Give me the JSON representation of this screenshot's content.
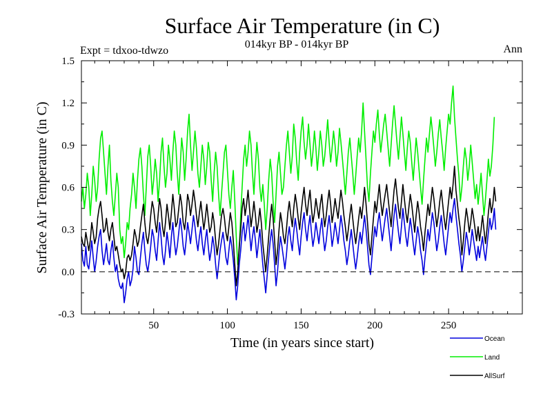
{
  "chart_data": {
    "type": "line",
    "title": "Surface Air Temperature (in C)",
    "subtitle": "014kyr BP - 014kyr BP",
    "experiment_label": "Expt = tdxoo-tdwzo",
    "season_label": "Ann",
    "xlabel": "Time (in years since start)",
    "ylabel": "Surface Air Temperature (in C)",
    "xlim": [
      1,
      300
    ],
    "ylim": [
      -0.3,
      1.5
    ],
    "x_ticks": [
      50,
      100,
      150,
      200,
      250
    ],
    "x_tick_labels": [
      "50",
      "100",
      "150",
      "200",
      "250"
    ],
    "y_ticks": [
      -0.3,
      0.0,
      0.3,
      0.6,
      0.9,
      1.2,
      1.5
    ],
    "y_tick_labels": [
      "-0.3",
      "0.0",
      "0.3",
      "0.6",
      "0.9",
      "1.2",
      "1.5"
    ],
    "reference_line": 0.0,
    "x_start": 1,
    "x_step": 1,
    "series": [
      {
        "name": "Ocean",
        "color": "#0000dd",
        "values": [
          0.2,
          0.08,
          0.04,
          0.18,
          0.05,
          0.02,
          0.12,
          0.22,
          0.1,
          0.0,
          0.08,
          0.18,
          0.25,
          0.3,
          0.15,
          0.05,
          0.12,
          0.2,
          0.08,
          0.05,
          0.15,
          0.22,
          0.1,
          0.0,
          0.05,
          -0.05,
          -0.1,
          -0.12,
          -0.08,
          -0.22,
          -0.15,
          -0.05,
          0.0,
          -0.1,
          -0.06,
          0.02,
          0.18,
          0.1,
          0.0,
          -0.02,
          0.1,
          0.2,
          0.28,
          0.15,
          0.05,
          0.0,
          0.08,
          0.18,
          0.3,
          0.25,
          0.15,
          0.08,
          0.22,
          0.35,
          0.25,
          0.12,
          0.05,
          0.15,
          0.28,
          0.2,
          0.1,
          0.25,
          0.35,
          0.22,
          0.12,
          0.18,
          0.28,
          0.38,
          0.3,
          0.18,
          0.12,
          0.22,
          0.35,
          0.28,
          0.2,
          0.3,
          0.4,
          0.32,
          0.22,
          0.15,
          0.25,
          0.32,
          0.2,
          0.12,
          0.22,
          0.3,
          0.18,
          0.08,
          0.15,
          0.25,
          0.18,
          0.05,
          -0.05,
          0.05,
          0.15,
          0.22,
          0.28,
          0.2,
          0.1,
          0.05,
          0.15,
          0.25,
          0.18,
          0.08,
          -0.05,
          -0.2,
          -0.1,
          0.05,
          0.15,
          0.28,
          0.35,
          0.22,
          0.3,
          0.4,
          0.28,
          0.15,
          0.25,
          0.32,
          0.22,
          0.1,
          0.2,
          0.3,
          0.18,
          0.05,
          -0.05,
          -0.15,
          -0.02,
          0.1,
          0.22,
          0.3,
          0.2,
          0.05,
          -0.1,
          0.0,
          0.15,
          0.25,
          0.18,
          0.1,
          0.02,
          0.12,
          0.25,
          0.32,
          0.22,
          0.15,
          0.28,
          0.38,
          0.3,
          0.2,
          0.12,
          0.25,
          0.35,
          0.42,
          0.3,
          0.22,
          0.32,
          0.4,
          0.28,
          0.18,
          0.25,
          0.35,
          0.28,
          0.2,
          0.3,
          0.38,
          0.25,
          0.15,
          0.22,
          0.32,
          0.4,
          0.3,
          0.18,
          0.25,
          0.35,
          0.28,
          0.2,
          0.3,
          0.4,
          0.32,
          0.22,
          0.15,
          0.05,
          0.12,
          0.22,
          0.3,
          0.2,
          0.1,
          0.02,
          0.1,
          0.2,
          0.28,
          0.2,
          0.3,
          0.4,
          0.3,
          0.18,
          0.05,
          -0.02,
          0.1,
          0.22,
          0.32,
          0.25,
          0.35,
          0.42,
          0.32,
          0.22,
          0.3,
          0.38,
          0.45,
          0.35,
          0.25,
          0.15,
          0.28,
          0.4,
          0.48,
          0.38,
          0.28,
          0.2,
          0.32,
          0.45,
          0.35,
          0.25,
          0.18,
          0.28,
          0.38,
          0.3,
          0.2,
          0.12,
          0.22,
          0.32,
          0.25,
          0.15,
          0.08,
          -0.02,
          0.1,
          0.2,
          0.3,
          0.22,
          0.32,
          0.42,
          0.35,
          0.25,
          0.15,
          0.22,
          0.32,
          0.4,
          0.3,
          0.2,
          0.12,
          0.22,
          0.32,
          0.42,
          0.35,
          0.45,
          0.52,
          0.4,
          0.3,
          0.2,
          0.12,
          0.0,
          0.08,
          0.18,
          0.28,
          0.22,
          0.12,
          0.2,
          0.3,
          0.22,
          0.15,
          0.08,
          0.18,
          0.1,
          0.18,
          0.25,
          0.15,
          0.08,
          0.18,
          0.28,
          0.38,
          0.3,
          0.35,
          0.45,
          0.3
        ]
      },
      {
        "name": "Land",
        "color": "#00ee00",
        "values": [
          0.5,
          0.6,
          0.45,
          0.55,
          0.7,
          0.6,
          0.4,
          0.55,
          0.75,
          0.65,
          0.5,
          0.6,
          0.8,
          0.95,
          1.0,
          0.85,
          0.7,
          0.55,
          0.75,
          0.9,
          0.65,
          0.5,
          0.4,
          0.55,
          0.7,
          0.6,
          0.3,
          0.2,
          0.25,
          0.1,
          0.2,
          0.35,
          0.3,
          0.45,
          0.55,
          0.7,
          0.6,
          0.45,
          0.65,
          0.8,
          0.88,
          0.75,
          0.55,
          0.4,
          0.6,
          0.82,
          0.9,
          0.75,
          0.55,
          0.65,
          0.8,
          0.7,
          0.5,
          0.65,
          0.85,
          0.95,
          0.75,
          0.6,
          0.7,
          0.9,
          0.8,
          0.65,
          0.85,
          1.0,
          0.9,
          0.7,
          0.55,
          0.75,
          0.95,
          0.85,
          0.65,
          0.8,
          1.0,
          1.12,
          0.9,
          0.72,
          0.85,
          1.0,
          0.88,
          0.7,
          0.6,
          0.75,
          0.9,
          0.8,
          0.62,
          0.75,
          0.92,
          0.85,
          0.65,
          0.5,
          0.7,
          0.85,
          0.75,
          0.55,
          0.4,
          0.55,
          0.7,
          0.85,
          0.9,
          0.72,
          0.55,
          0.45,
          0.6,
          0.72,
          0.5,
          0.25,
          0.05,
          0.15,
          0.4,
          0.6,
          0.8,
          0.9,
          0.75,
          0.85,
          1.0,
          0.9,
          0.7,
          0.55,
          0.75,
          0.92,
          0.8,
          0.6,
          0.5,
          0.62,
          0.48,
          0.3,
          0.45,
          0.65,
          0.8,
          0.7,
          0.5,
          0.35,
          0.55,
          0.75,
          0.85,
          0.7,
          0.55,
          0.6,
          0.75,
          0.9,
          1.0,
          0.85,
          0.7,
          0.82,
          1.05,
          0.95,
          0.78,
          0.65,
          0.85,
          1.0,
          1.1,
          0.92,
          0.8,
          0.9,
          1.05,
          0.9,
          0.75,
          0.85,
          1.0,
          0.88,
          0.72,
          0.85,
          1.0,
          0.9,
          0.75,
          0.82,
          0.95,
          1.08,
          0.92,
          0.78,
          0.88,
          1.0,
          0.9,
          0.75,
          0.85,
          1.02,
          0.92,
          0.8,
          0.68,
          0.55,
          0.7,
          0.85,
          0.95,
          0.82,
          0.7,
          0.55,
          0.68,
          0.82,
          0.95,
          0.85,
          1.0,
          1.2,
          1.0,
          0.8,
          0.6,
          0.5,
          0.7,
          0.85,
          1.0,
          0.92,
          1.05,
          1.15,
          0.98,
          0.85,
          0.95,
          1.05,
          1.12,
          1.0,
          0.88,
          0.75,
          0.9,
          1.05,
          1.18,
          1.05,
          0.92,
          0.8,
          0.95,
          1.1,
          0.98,
          0.85,
          0.72,
          0.88,
          1.0,
          0.92,
          0.78,
          0.65,
          0.8,
          0.95,
          0.85,
          0.72,
          0.6,
          0.48,
          0.65,
          0.8,
          0.95,
          0.85,
          0.98,
          1.1,
          1.0,
          0.88,
          0.75,
          0.85,
          0.98,
          1.08,
          0.95,
          0.85,
          0.72,
          0.88,
          1.0,
          1.12,
          1.05,
          1.2,
          1.32,
          1.1,
          0.95,
          0.8,
          0.68,
          0.5,
          0.6,
          0.75,
          0.88,
          0.8,
          0.65,
          0.75,
          0.9,
          0.78,
          0.65,
          0.52,
          0.62,
          0.48,
          0.58,
          0.7,
          0.55,
          0.4,
          0.52,
          0.65,
          0.8,
          0.68,
          0.75,
          0.9,
          1.1
        ]
      },
      {
        "name": "AllSurf",
        "color": "#000000",
        "values": [
          0.25,
          0.2,
          0.18,
          0.28,
          0.22,
          0.15,
          0.22,
          0.35,
          0.28,
          0.2,
          0.25,
          0.38,
          0.45,
          0.5,
          0.4,
          0.28,
          0.3,
          0.38,
          0.28,
          0.22,
          0.3,
          0.35,
          0.25,
          0.15,
          0.18,
          0.12,
          0.05,
          0.0,
          0.02,
          -0.05,
          0.0,
          0.1,
          0.12,
          0.08,
          0.12,
          0.2,
          0.3,
          0.25,
          0.18,
          0.22,
          0.32,
          0.4,
          0.48,
          0.35,
          0.25,
          0.2,
          0.28,
          0.4,
          0.5,
          0.45,
          0.35,
          0.28,
          0.4,
          0.52,
          0.45,
          0.32,
          0.25,
          0.35,
          0.48,
          0.4,
          0.3,
          0.42,
          0.55,
          0.45,
          0.32,
          0.35,
          0.45,
          0.55,
          0.48,
          0.35,
          0.3,
          0.4,
          0.55,
          0.5,
          0.4,
          0.48,
          0.58,
          0.5,
          0.4,
          0.32,
          0.42,
          0.5,
          0.4,
          0.3,
          0.38,
          0.48,
          0.38,
          0.28,
          0.32,
          0.42,
          0.35,
          0.22,
          0.12,
          0.2,
          0.3,
          0.4,
          0.45,
          0.38,
          0.28,
          0.22,
          0.32,
          0.42,
          0.35,
          0.22,
          0.05,
          -0.1,
          0.0,
          0.18,
          0.3,
          0.45,
          0.52,
          0.4,
          0.48,
          0.58,
          0.45,
          0.32,
          0.4,
          0.5,
          0.4,
          0.28,
          0.35,
          0.45,
          0.35,
          0.2,
          0.1,
          0.0,
          0.12,
          0.25,
          0.38,
          0.48,
          0.38,
          0.22,
          0.05,
          0.15,
          0.3,
          0.42,
          0.35,
          0.25,
          0.2,
          0.3,
          0.42,
          0.5,
          0.4,
          0.32,
          0.45,
          0.55,
          0.48,
          0.38,
          0.3,
          0.42,
          0.52,
          0.6,
          0.48,
          0.4,
          0.5,
          0.58,
          0.45,
          0.35,
          0.42,
          0.52,
          0.45,
          0.38,
          0.48,
          0.55,
          0.42,
          0.32,
          0.4,
          0.5,
          0.58,
          0.48,
          0.35,
          0.42,
          0.52,
          0.45,
          0.38,
          0.48,
          0.58,
          0.5,
          0.4,
          0.32,
          0.22,
          0.3,
          0.4,
          0.48,
          0.38,
          0.28,
          0.2,
          0.28,
          0.38,
          0.46,
          0.38,
          0.48,
          0.6,
          0.48,
          0.35,
          0.2,
          0.12,
          0.25,
          0.38,
          0.5,
          0.42,
          0.52,
          0.62,
          0.5,
          0.4,
          0.48,
          0.55,
          0.62,
          0.52,
          0.42,
          0.32,
          0.45,
          0.58,
          0.66,
          0.55,
          0.45,
          0.38,
          0.5,
          0.62,
          0.52,
          0.42,
          0.35,
          0.45,
          0.55,
          0.48,
          0.38,
          0.28,
          0.4,
          0.5,
          0.42,
          0.32,
          0.25,
          0.15,
          0.28,
          0.38,
          0.48,
          0.4,
          0.5,
          0.6,
          0.52,
          0.42,
          0.32,
          0.4,
          0.5,
          0.58,
          0.48,
          0.38,
          0.3,
          0.4,
          0.5,
          0.6,
          0.52,
          0.62,
          0.75,
          0.58,
          0.48,
          0.38,
          0.3,
          0.12,
          0.22,
          0.35,
          0.45,
          0.38,
          0.28,
          0.35,
          0.45,
          0.38,
          0.3,
          0.22,
          0.32,
          0.22,
          0.3,
          0.4,
          0.3,
          0.2,
          0.3,
          0.42,
          0.52,
          0.42,
          0.48,
          0.6,
          0.5
        ]
      }
    ],
    "legend": [
      {
        "label": "Ocean",
        "color": "#0000dd"
      },
      {
        "label": "Land",
        "color": "#00ee00"
      },
      {
        "label": "AllSurf",
        "color": "#000000"
      }
    ],
    "legend_position": "bottom-right"
  }
}
